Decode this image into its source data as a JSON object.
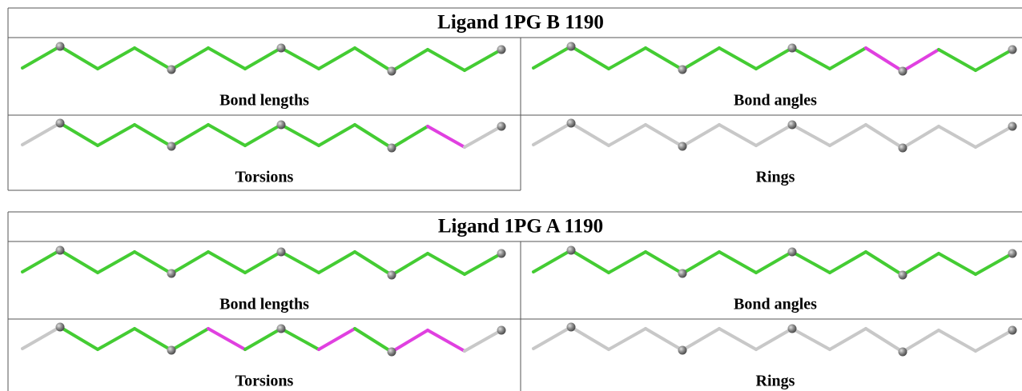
{
  "tables": [
    {
      "title": "Ligand 1PG B 1190",
      "panels": [
        {
          "caption": "Bond lengths"
        },
        {
          "caption": "Bond angles"
        },
        {
          "caption": "Torsions"
        },
        {
          "caption": "Rings"
        }
      ]
    },
    {
      "title": "Ligand 1PG A 1190",
      "panels": [
        {
          "caption": "Bond lengths"
        },
        {
          "caption": "Bond angles"
        },
        {
          "caption": "Torsions"
        },
        {
          "caption": "Rings"
        }
      ]
    }
  ]
}
